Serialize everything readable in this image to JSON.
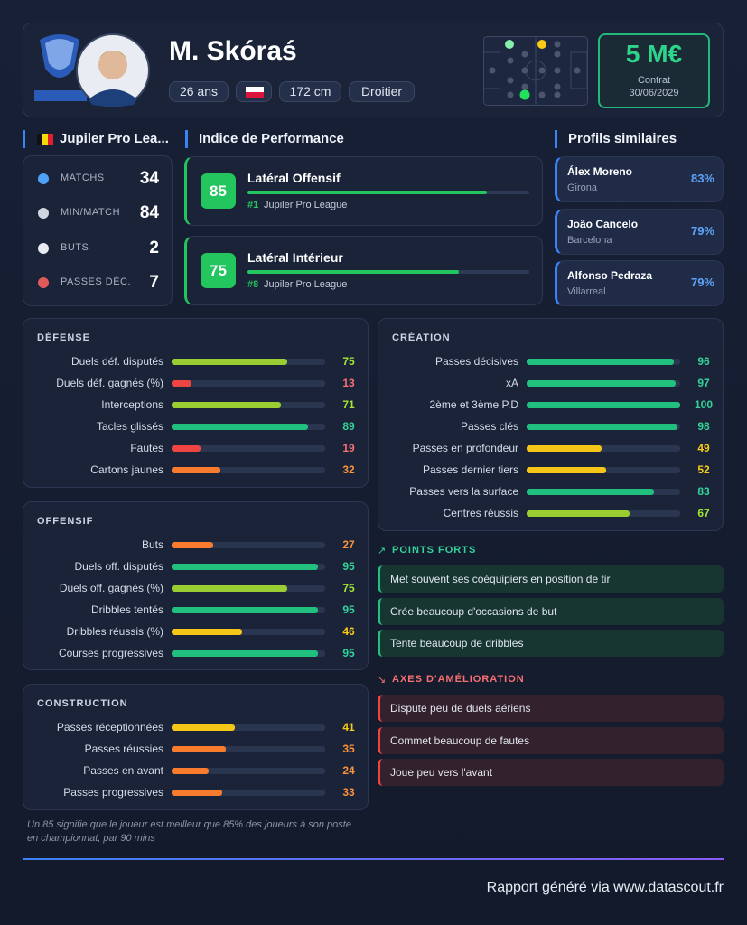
{
  "header": {
    "name": "M. Skóraś",
    "age": "26 ans",
    "height": "172 cm",
    "foot": "Droitier",
    "market_value": "5 M€",
    "contract_label": "Contrat",
    "contract_date": "30/06/2029"
  },
  "league": {
    "title": "Jupiler Pro Lea...",
    "stats": [
      {
        "label": "MATCHS",
        "value": 34
      },
      {
        "label": "MIN/MATCH",
        "value": 84
      },
      {
        "label": "BUTS",
        "value": 2
      },
      {
        "label": "PASSES DÉC.",
        "value": 7
      }
    ]
  },
  "performance": {
    "title": "Indice de Performance",
    "profiles": [
      {
        "score": 85,
        "role": "Latéral Offensif",
        "rank": "#1",
        "league": "Jupiler Pro League"
      },
      {
        "score": 75,
        "role": "Latéral Intérieur",
        "rank": "#8",
        "league": "Jupiler Pro League"
      }
    ]
  },
  "similar": {
    "title": "Profils similaires",
    "players": [
      {
        "name": "Álex Moreno",
        "club": "Girona",
        "match": "83%"
      },
      {
        "name": "João Cancelo",
        "club": "Barcelona",
        "match": "79%"
      },
      {
        "name": "Alfonso Pedraza",
        "club": "Villarreal",
        "match": "79%"
      }
    ]
  },
  "sections": [
    {
      "title": "DÉFENSE",
      "items": [
        {
          "label": "Duels déf. disputés",
          "value": 75
        },
        {
          "label": "Duels déf. gagnés (%)",
          "value": 13
        },
        {
          "label": "Interceptions",
          "value": 71
        },
        {
          "label": "Tacles glissés",
          "value": 89
        },
        {
          "label": "Fautes",
          "value": 19
        },
        {
          "label": "Cartons jaunes",
          "value": 32
        }
      ]
    },
    {
      "title": "OFFENSIF",
      "items": [
        {
          "label": "Buts",
          "value": 27
        },
        {
          "label": "Duels off. disputés",
          "value": 95
        },
        {
          "label": "Duels off. gagnés (%)",
          "value": 75
        },
        {
          "label": "Dribbles tentés",
          "value": 95
        },
        {
          "label": "Dribbles réussis (%)",
          "value": 46
        },
        {
          "label": "Courses progressives",
          "value": 95
        }
      ]
    },
    {
      "title": "CONSTRUCTION",
      "items": [
        {
          "label": "Passes réceptionnées",
          "value": 41
        },
        {
          "label": "Passes réussies",
          "value": 35
        },
        {
          "label": "Passes en avant",
          "value": 24
        },
        {
          "label": "Passes progressives",
          "value": 33
        }
      ]
    },
    {
      "title": "CRÉATION",
      "items": [
        {
          "label": "Passes décisives",
          "value": 96
        },
        {
          "label": "xA",
          "value": 97
        },
        {
          "label": "2ème et 3ème P.D",
          "value": 100
        },
        {
          "label": "Passes clés",
          "value": 98
        },
        {
          "label": "Passes en profondeur",
          "value": 49
        },
        {
          "label": "Passes dernier tiers",
          "value": 52
        },
        {
          "label": "Passes vers la surface",
          "value": 83
        },
        {
          "label": "Centres réussis",
          "value": 67
        }
      ]
    }
  ],
  "strengths": {
    "title": "POINTS FORTS",
    "items": [
      "Met souvent ses coéquipiers en position de tir",
      "Crée beaucoup d'occasions de but",
      "Tente beaucoup de dribbles"
    ]
  },
  "improvements": {
    "title": "AXES D'AMÉLIORATION",
    "items": [
      "Dispute peu de duels aériens",
      "Commet beaucoup de fautes",
      "Joue peu vers l'avant"
    ]
  },
  "footnote": "Un 85 signifie que le joueur est meilleur que 85% des joueurs à son poste en championnat, par 90 mins",
  "footer": "Rapport généré via www.datascout.fr"
}
